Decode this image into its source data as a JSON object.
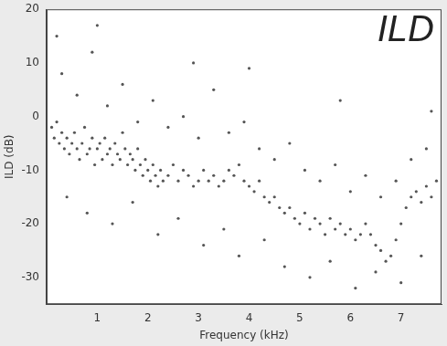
{
  "chart_data": {
    "type": "scatter",
    "title": "ILD",
    "x_label": "Frequency (kHz)",
    "y_label": "ILD (dB)",
    "x": [
      0.1,
      0.15,
      0.2,
      0.25,
      0.3,
      0.35,
      0.4,
      0.45,
      0.5,
      0.55,
      0.6,
      0.65,
      0.7,
      0.75,
      0.8,
      0.85,
      0.9,
      0.95,
      1.0,
      1.05,
      1.1,
      1.15,
      1.2,
      1.25,
      1.3,
      1.35,
      1.4,
      1.45,
      1.5,
      1.55,
      1.6,
      1.65,
      1.7,
      1.75,
      1.8,
      1.85,
      1.9,
      1.95,
      2.0,
      2.05,
      2.1,
      2.15,
      2.2,
      2.25,
      2.3,
      2.4,
      2.5,
      2.6,
      2.7,
      2.8,
      2.9,
      3.0,
      3.1,
      3.2,
      3.3,
      3.4,
      3.5,
      3.6,
      3.7,
      3.8,
      3.9,
      4.0,
      4.1,
      4.2,
      4.3,
      4.4,
      4.5,
      4.6,
      4.7,
      4.8,
      4.9,
      5.0,
      5.1,
      5.2,
      5.3,
      5.4,
      5.5,
      5.6,
      5.7,
      5.8,
      5.9,
      6.0,
      6.1,
      6.2,
      6.3,
      6.4,
      6.5,
      6.6,
      6.7,
      6.8,
      6.9,
      7.0,
      7.1,
      7.2,
      7.3,
      7.4,
      7.5,
      7.6,
      7.7,
      0.3,
      0.6,
      0.9,
      1.2,
      1.5,
      1.8,
      2.1,
      2.4,
      2.7,
      3.0,
      3.3,
      3.6,
      3.9,
      4.2,
      4.5,
      4.8,
      5.1,
      5.4,
      5.7,
      6.0,
      6.3,
      6.6,
      6.9,
      7.2,
      7.5,
      0.4,
      0.8,
      1.3,
      1.7,
      2.2,
      2.6,
      3.1,
      3.5,
      3.8,
      4.3,
      4.7,
      5.2,
      5.6,
      6.1,
      6.5,
      7.0,
      7.4,
      0.2,
      1.0,
      2.9,
      4.0,
      5.8,
      7.6
    ],
    "values": [
      -2,
      -4,
      -1,
      -5,
      -3,
      -6,
      -4,
      -7,
      -5,
      -3,
      -6,
      -8,
      -5,
      -2,
      -7,
      -6,
      -4,
      -9,
      -6,
      -5,
      -8,
      -4,
      -7,
      -6,
      -9,
      -5,
      -7,
      -8,
      -3,
      -6,
      -9,
      -7,
      -8,
      -10,
      -6,
      -9,
      -11,
      -8,
      -10,
      -12,
      -9,
      -11,
      -13,
      -10,
      -12,
      -11,
      -9,
      -12,
      -10,
      -11,
      -13,
      -12,
      -10,
      -12,
      -11,
      -13,
      -12,
      -10,
      -11,
      -9,
      -12,
      -13,
      -14,
      -12,
      -15,
      -16,
      -15,
      -17,
      -18,
      -17,
      -19,
      -20,
      -18,
      -21,
      -19,
      -20,
      -22,
      -19,
      -21,
      -20,
      -22,
      -21,
      -23,
      -22,
      -20,
      -22,
      -24,
      -25,
      -27,
      -26,
      -23,
      -20,
      -17,
      -15,
      -14,
      -16,
      -13,
      -15,
      -12,
      8,
      4,
      12,
      2,
      6,
      -1,
      3,
      -2,
      0,
      -4,
      5,
      -3,
      -1,
      -6,
      -8,
      -5,
      -10,
      -12,
      -9,
      -14,
      -11,
      -15,
      -12,
      -8,
      -6,
      -15,
      -18,
      -20,
      -16,
      -22,
      -19,
      -24,
      -21,
      -26,
      -23,
      -28,
      -30,
      -27,
      -32,
      -29,
      -31,
      -26,
      15,
      17,
      10,
      9,
      3,
      1
    ],
    "color": "#555555",
    "xlim": [
      0,
      7.8
    ],
    "xticks": [
      1,
      2,
      3,
      4,
      5,
      6,
      7
    ],
    "ylim": [
      -35,
      20
    ],
    "yticks": [
      -30,
      -20,
      -10,
      0,
      10,
      20
    ],
    "grid": false
  }
}
